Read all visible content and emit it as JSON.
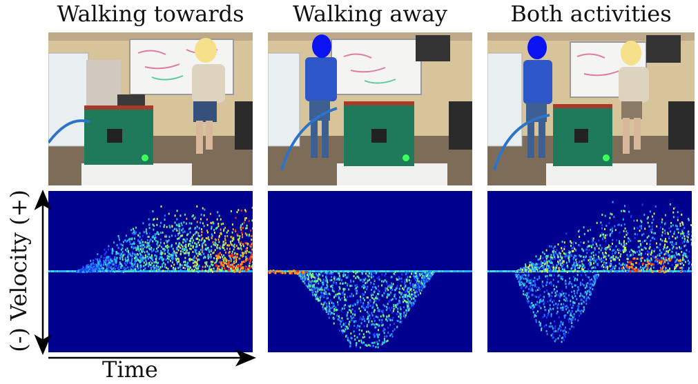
{
  "panels": [
    {
      "title": "Walking towards",
      "faces": [
        "yellow"
      ]
    },
    {
      "title": "Walking away",
      "faces": [
        "blue"
      ]
    },
    {
      "title": "Both activities",
      "faces": [
        "blue",
        "yellow"
      ]
    }
  ],
  "y_axis_label": "(-) Velocity (+)",
  "x_axis_label": "Time",
  "colors": {
    "spectrogram_bg": "#00008f",
    "face_yellow": "#f7e08a",
    "face_blue": "#0a14f0",
    "board_green": "#1e7a5a",
    "wall": "#d8c49a"
  }
}
